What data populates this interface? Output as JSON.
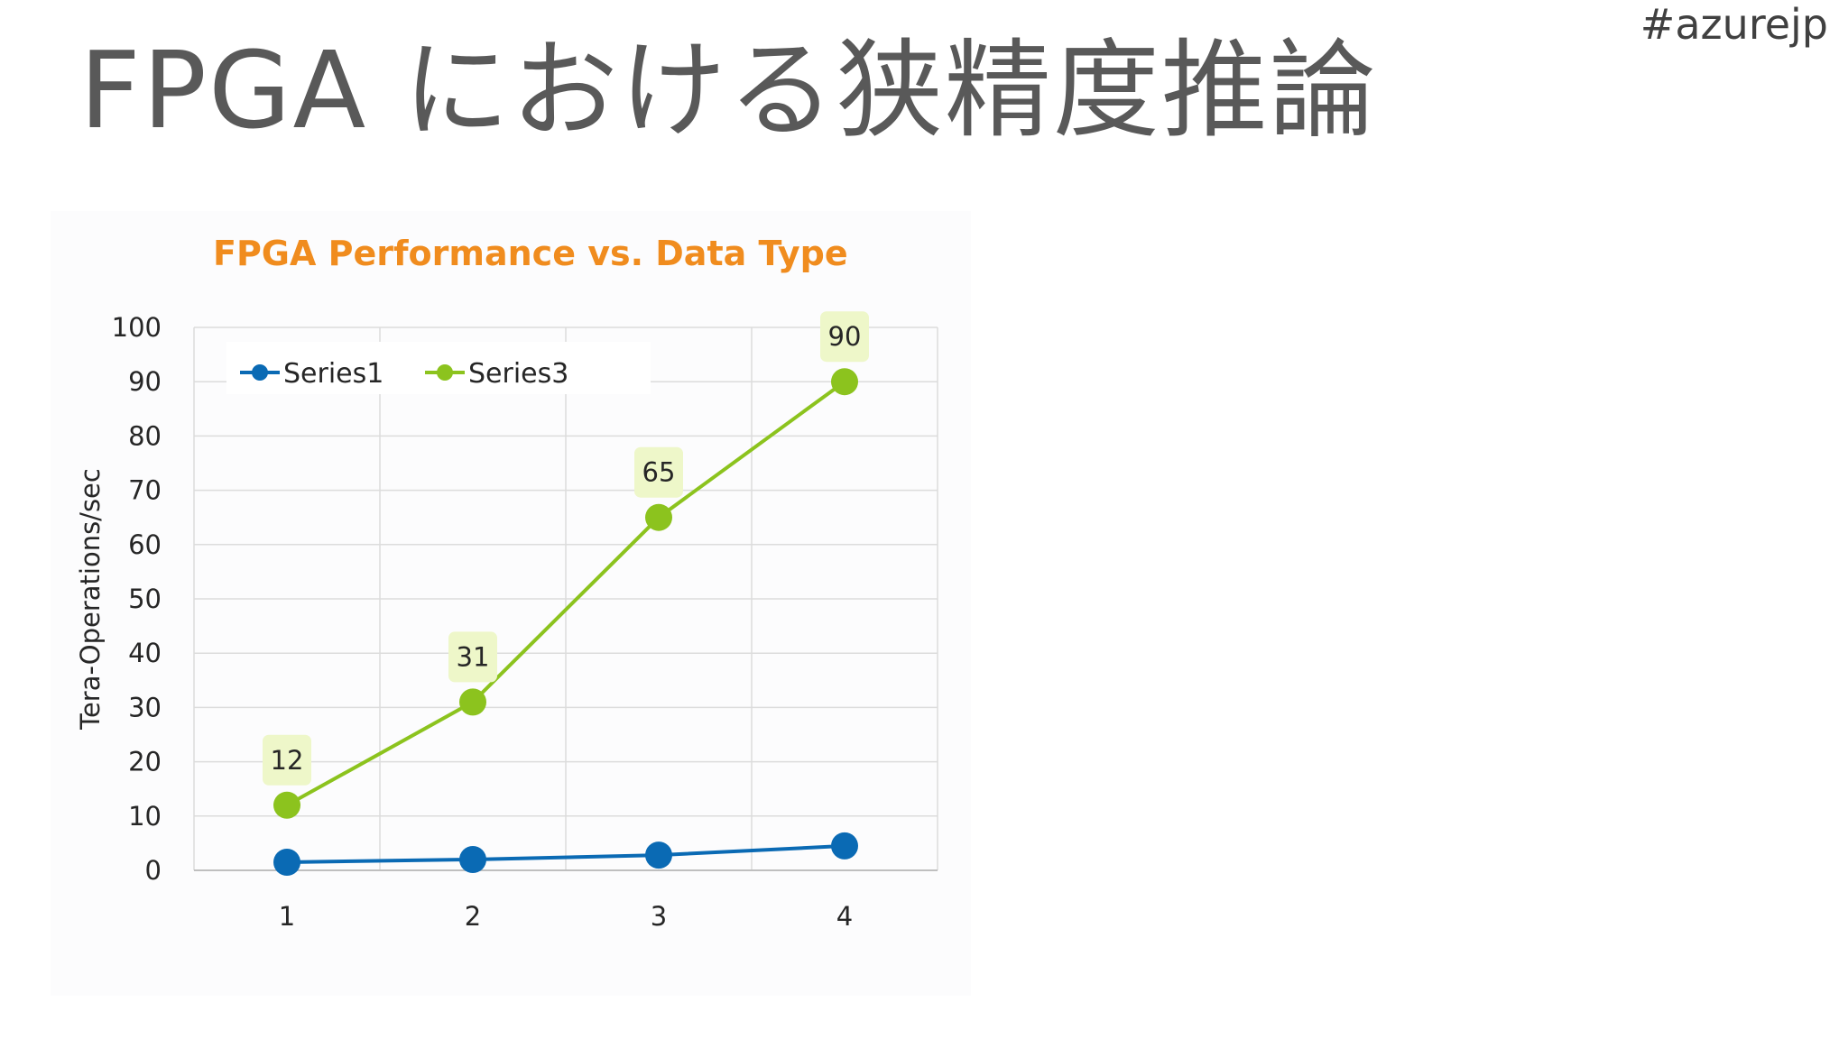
{
  "slide": {
    "title": "FPGA における狭精度推論",
    "hashtag": "#azurejp"
  },
  "chart_data": {
    "type": "line",
    "title": "FPGA Performance vs. Data Type",
    "xlabel": "",
    "ylabel": "Tera-Operations/sec",
    "categories": [
      "1",
      "2",
      "3",
      "4"
    ],
    "ylim": [
      0,
      100
    ],
    "yticks": [
      "0",
      "10",
      "20",
      "30",
      "40",
      "50",
      "60",
      "70",
      "80",
      "90",
      "100"
    ],
    "grid": true,
    "legend_position": "top-left",
    "title_color": "#f08c1e",
    "series": [
      {
        "name": "Series1",
        "values": [
          1.5,
          2,
          2.8,
          4.5
        ],
        "color": "#0a6ab4",
        "data_labels": false
      },
      {
        "name": "Series3",
        "values": [
          12,
          31,
          65,
          90
        ],
        "color": "#8cc31e",
        "label_bg": "#eef7c9",
        "data_labels": true
      }
    ]
  }
}
